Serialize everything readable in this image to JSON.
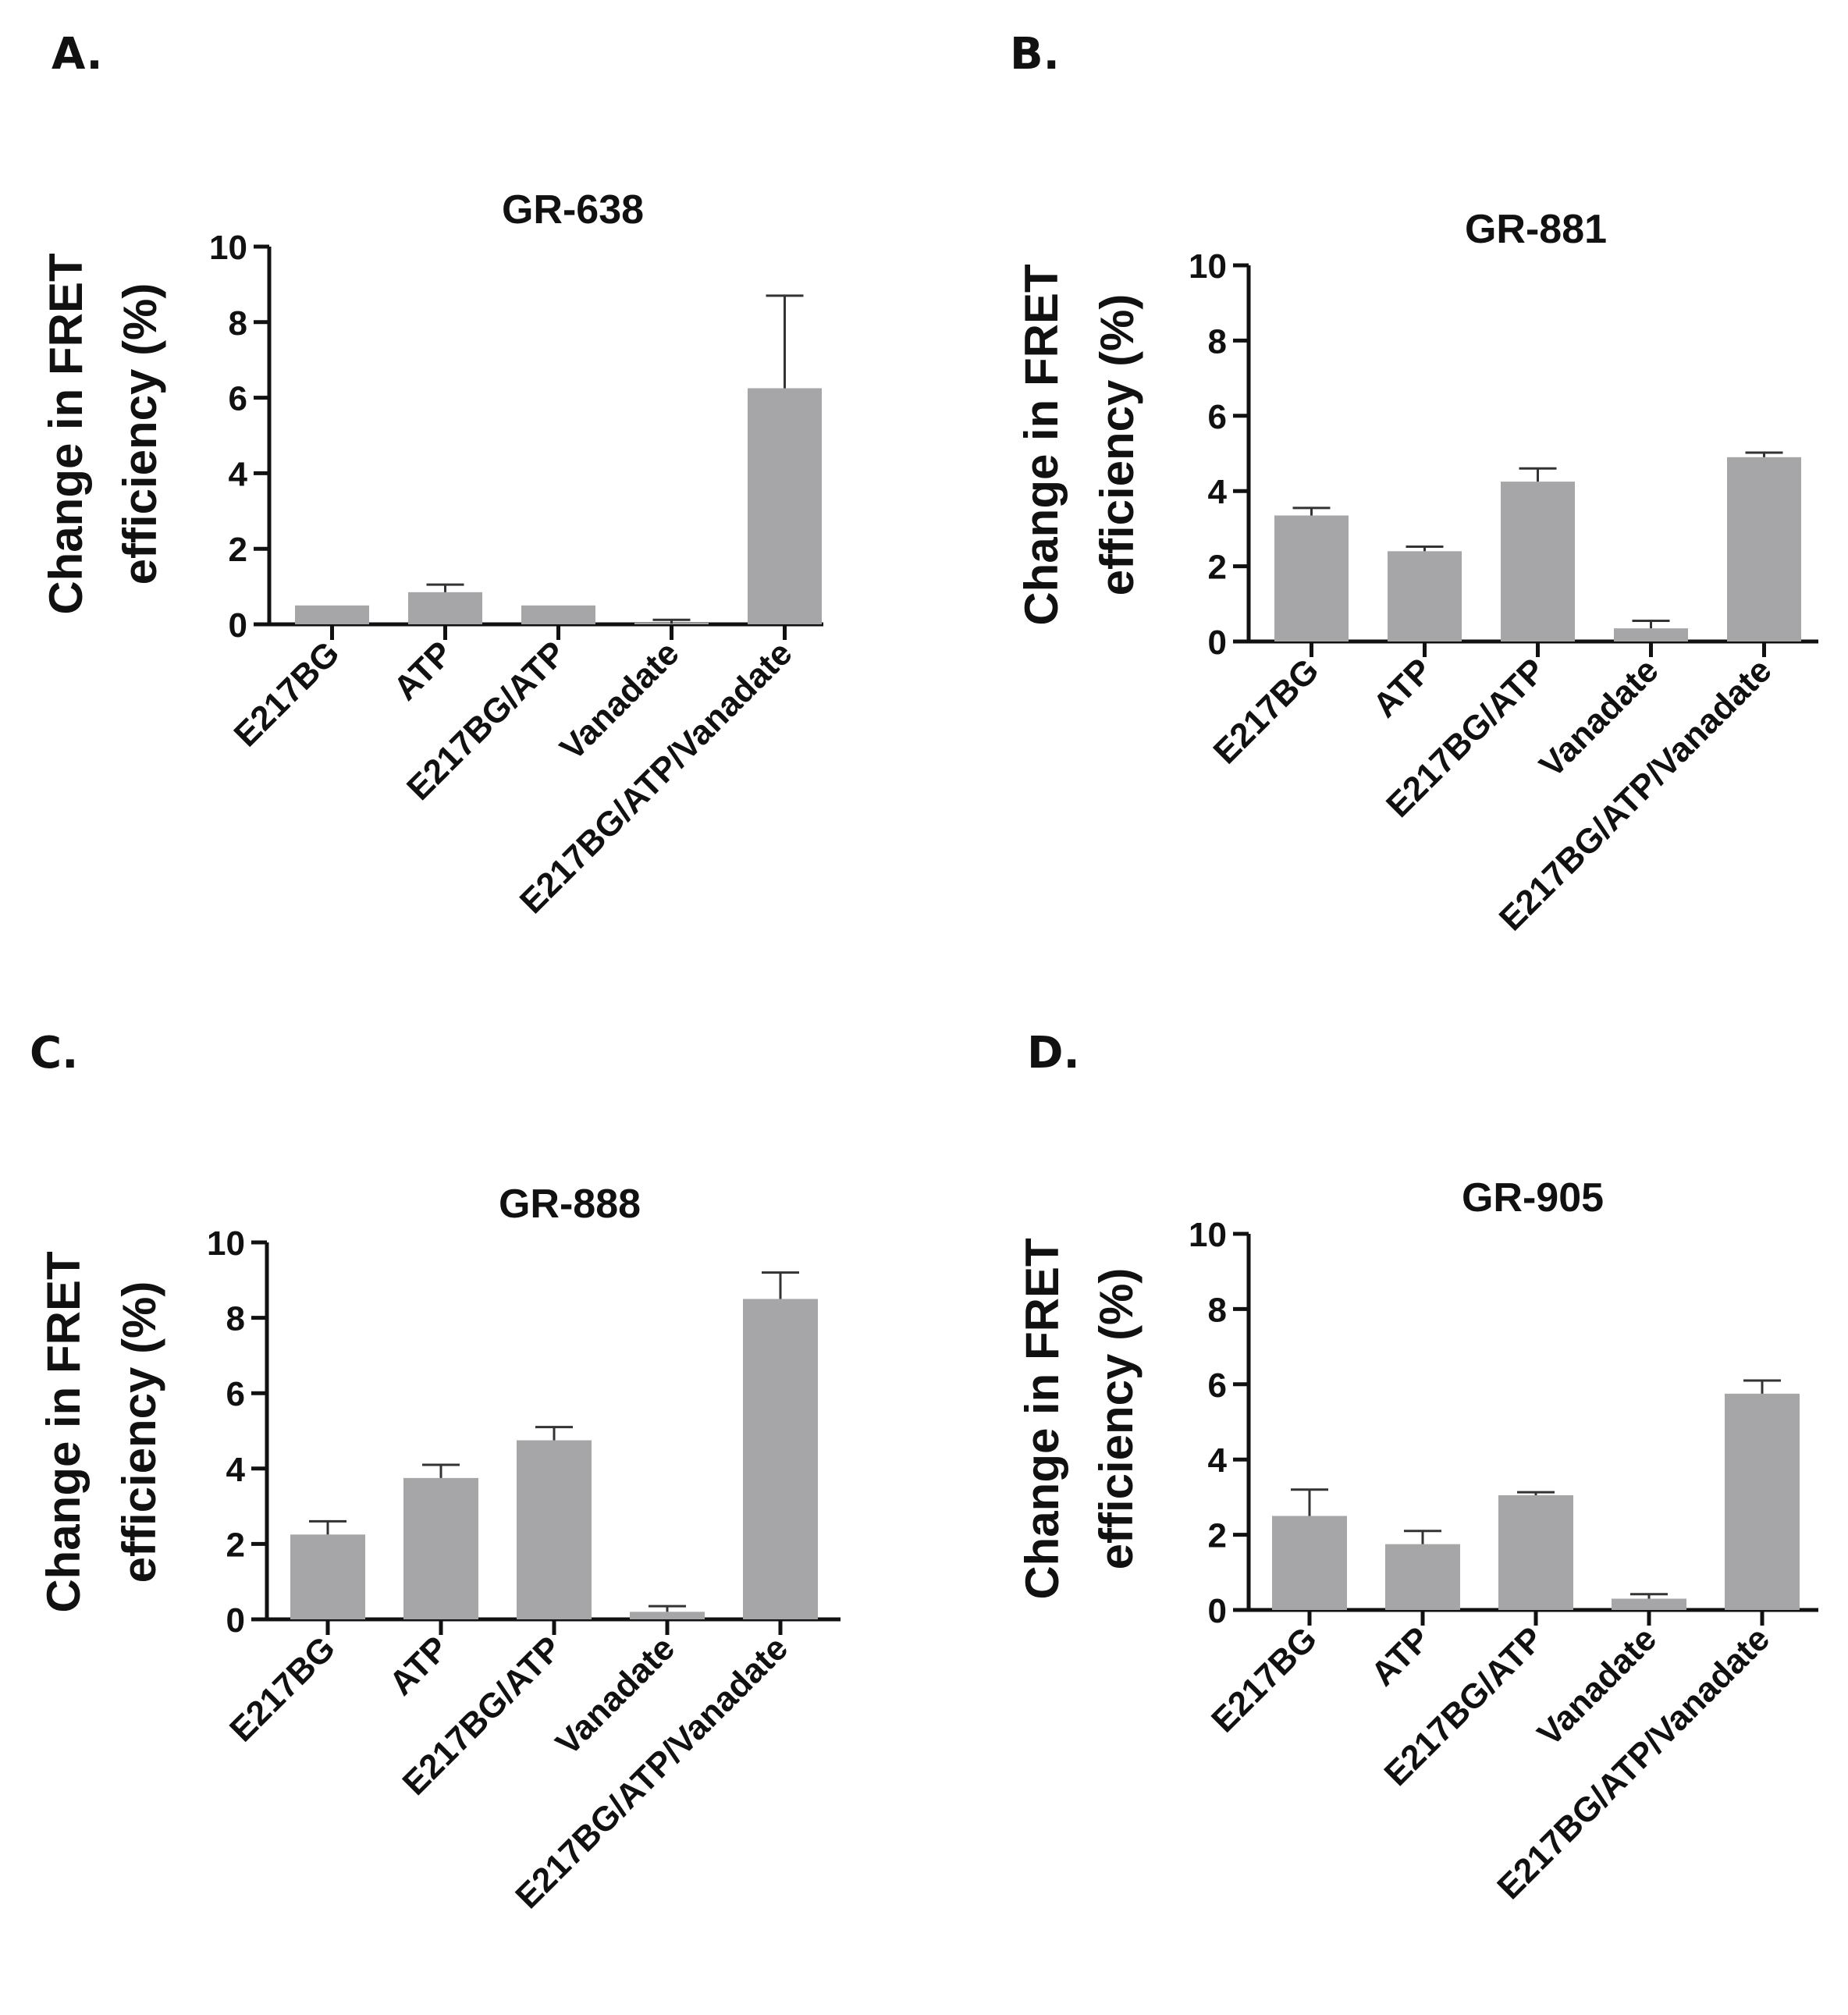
{
  "figure": {
    "panels": [
      "A.",
      "B.",
      "C.",
      "D."
    ]
  },
  "chart_data": [
    {
      "type": "bar",
      "panel": "A.",
      "title": "GR-638",
      "xlabel": "",
      "ylabel": "Change in FRET efficiency (%)",
      "ylim": [
        0,
        10
      ],
      "yticks": [
        "0",
        "2",
        "4",
        "6",
        "8",
        "10"
      ],
      "categories": [
        "E217BG",
        "ATP",
        "E217BG/ATP",
        "Vanadate",
        "E217BG/ATP/Vanadate"
      ],
      "values": [
        0.5,
        0.85,
        0.5,
        0.02,
        6.25
      ],
      "errors": [
        0.0,
        0.2,
        0.0,
        0.1,
        2.45
      ],
      "bar_color": "#a6a6a8"
    },
    {
      "type": "bar",
      "panel": "B.",
      "title": "GR-881",
      "xlabel": "",
      "ylabel": "Change in FRET efficiency (%)",
      "ylim": [
        0,
        10
      ],
      "yticks": [
        "0",
        "2",
        "4",
        "6",
        "8",
        "10"
      ],
      "categories": [
        "E217BG",
        "ATP",
        "E217BG/ATP",
        "Vanadate",
        "E217BG/ATP/Vanadate"
      ],
      "values": [
        3.35,
        2.4,
        4.25,
        0.35,
        4.9
      ],
      "errors": [
        0.2,
        0.12,
        0.35,
        0.2,
        0.12
      ],
      "bar_color": "#a6a6a8"
    },
    {
      "type": "bar",
      "panel": "C.",
      "title": "GR-888",
      "xlabel": "",
      "ylabel": "Change in FRET efficiency (%)",
      "ylim": [
        0,
        10
      ],
      "yticks": [
        "0",
        "2",
        "4",
        "6",
        "8",
        "10"
      ],
      "categories": [
        "E217BG",
        "ATP",
        "E217BG/ATP",
        "Vanadate",
        "E217BG/ATP/Vanadate"
      ],
      "values": [
        2.25,
        3.75,
        4.75,
        0.2,
        8.5
      ],
      "errors": [
        0.35,
        0.35,
        0.35,
        0.15,
        0.7
      ],
      "bar_color": "#a6a6a8"
    },
    {
      "type": "bar",
      "panel": "D.",
      "title": "GR-905",
      "xlabel": "",
      "ylabel": "Change in FRET efficiency (%)",
      "ylim": [
        0,
        10
      ],
      "yticks": [
        "0",
        "2",
        "4",
        "6",
        "8",
        "10"
      ],
      "categories": [
        "E217BG",
        "ATP",
        "E217BG/ATP",
        "Vanadate",
        "E217BG/ATP/Vanadate"
      ],
      "values": [
        2.5,
        1.75,
        3.05,
        0.3,
        5.75
      ],
      "errors": [
        0.7,
        0.35,
        0.08,
        0.12,
        0.35
      ],
      "bar_color": "#a6a6a8"
    }
  ]
}
